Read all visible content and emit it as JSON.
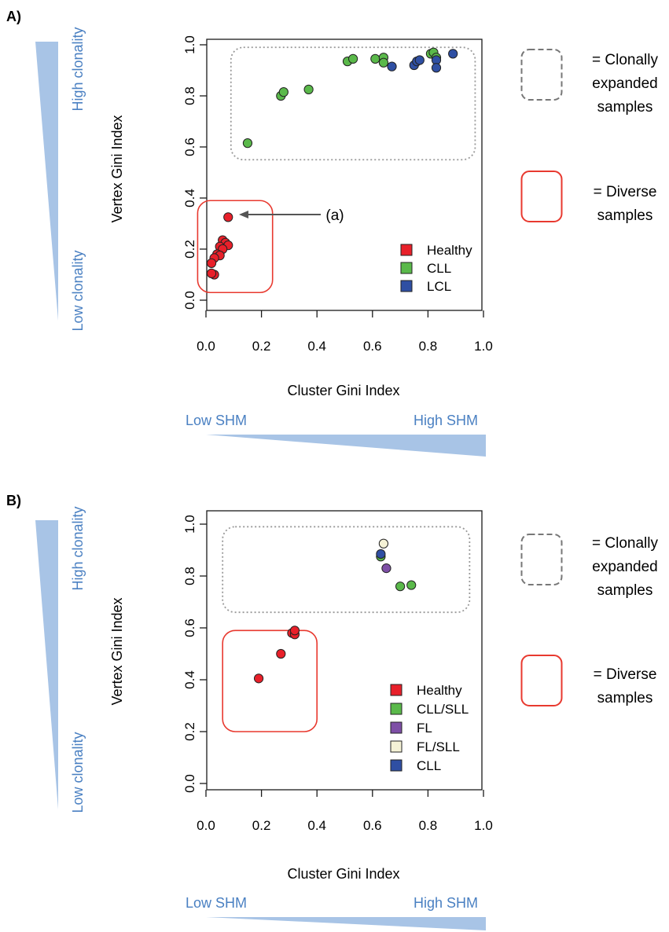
{
  "panels": [
    {
      "label": "A)",
      "left_scale": {
        "top_label": "High clonality",
        "bottom_label": "Low clonality"
      },
      "bottom_scale": {
        "left_label": "Low SHM",
        "right_label": "High SHM"
      },
      "box_legend": {
        "clonal_label_lines": [
          "= Clonally",
          "expanded",
          "samples"
        ],
        "diverse_label_lines": [
          "= Diverse",
          "samples"
        ]
      },
      "annotation": {
        "text": "(a)"
      },
      "chart_data": {
        "type": "scatter",
        "xlabel": "Cluster Gini Index",
        "ylabel": "Vertex Gini Index",
        "xlim": [
          0,
          1
        ],
        "ylim": [
          0,
          1
        ],
        "xticks": [
          "0.0",
          "0.2",
          "0.4",
          "0.6",
          "0.8",
          "1.0"
        ],
        "yticks": [
          "0.0",
          "0.2",
          "0.4",
          "0.6",
          "0.8",
          "1.0"
        ],
        "grid": false,
        "legend_position": "bottom-right",
        "series": [
          {
            "name": "Healthy",
            "color": "#e8202a",
            "x": [
              0.08,
              0.06,
              0.07,
              0.08,
              0.05,
              0.06,
              0.04,
              0.05,
              0.03,
              0.02,
              0.03,
              0.02
            ],
            "y": [
              0.325,
              0.235,
              0.225,
              0.215,
              0.21,
              0.2,
              0.18,
              0.175,
              0.165,
              0.145,
              0.1,
              0.105
            ]
          },
          {
            "name": "CLL",
            "color": "#5ab94a",
            "x": [
              0.15,
              0.27,
              0.28,
              0.37,
              0.51,
              0.53,
              0.61,
              0.64,
              0.64,
              0.81,
              0.82,
              0.83
            ],
            "y": [
              0.615,
              0.8,
              0.815,
              0.825,
              0.935,
              0.945,
              0.945,
              0.95,
              0.93,
              0.965,
              0.97,
              0.95
            ]
          },
          {
            "name": "LCL",
            "color": "#2f4fa3",
            "x": [
              0.67,
              0.75,
              0.76,
              0.77,
              0.83,
              0.83,
              0.89
            ],
            "y": [
              0.915,
              0.92,
              0.935,
              0.94,
              0.94,
              0.91,
              0.965
            ]
          }
        ],
        "regions": [
          {
            "kind": "clonal",
            "x": [
              0.09,
              0.97
            ],
            "y": [
              0.55,
              0.99
            ]
          },
          {
            "kind": "diverse",
            "x": [
              -0.03,
              0.24
            ],
            "y": [
              0.03,
              0.39
            ]
          }
        ]
      }
    },
    {
      "label": "B)",
      "left_scale": {
        "top_label": "High clonality",
        "bottom_label": "Low clonality"
      },
      "bottom_scale": {
        "left_label": "Low SHM",
        "right_label": "High SHM"
      },
      "box_legend": {
        "clonal_label_lines": [
          "= Clonally",
          "expanded",
          "samples"
        ],
        "diverse_label_lines": [
          "= Diverse",
          "samples"
        ]
      },
      "chart_data": {
        "type": "scatter",
        "xlabel": "Cluster Gini Index",
        "ylabel": "Vertex Gini Index",
        "xlim": [
          0,
          1
        ],
        "ylim": [
          0,
          1
        ],
        "xticks": [
          "0.0",
          "0.2",
          "0.4",
          "0.6",
          "0.8",
          "1.0"
        ],
        "yticks": [
          "0.0",
          "0.2",
          "0.4",
          "0.6",
          "0.8",
          "1.0"
        ],
        "grid": false,
        "legend_position": "bottom-right",
        "series": [
          {
            "name": "Healthy",
            "color": "#e8202a",
            "x": [
              0.19,
              0.27,
              0.31,
              0.32,
              0.32
            ],
            "y": [
              0.405,
              0.5,
              0.58,
              0.575,
              0.59
            ]
          },
          {
            "name": "CLL/SLL",
            "color": "#5ab94a",
            "x": [
              0.63,
              0.7,
              0.74
            ],
            "y": [
              0.875,
              0.76,
              0.765
            ]
          },
          {
            "name": "FL",
            "color": "#7e4fa6",
            "x": [
              0.65
            ],
            "y": [
              0.83
            ]
          },
          {
            "name": "FL/SLL",
            "color": "#f5f2d6",
            "x": [
              0.64
            ],
            "y": [
              0.925
            ]
          },
          {
            "name": "CLL",
            "color": "#2f4fa3",
            "x": [
              0.63
            ],
            "y": [
              0.885
            ]
          }
        ],
        "regions": [
          {
            "kind": "clonal",
            "x": [
              0.06,
              0.95
            ],
            "y": [
              0.66,
              0.99
            ]
          },
          {
            "kind": "diverse",
            "x": [
              0.06,
              0.4
            ],
            "y": [
              0.2,
              0.59
            ]
          }
        ]
      }
    }
  ],
  "colors": {
    "scale_blue": "#a8c4e6",
    "scale_text": "#4a80c2",
    "clonal_box": "#999999",
    "diverse_box": "#e8392f",
    "axis": "#1a1a1a"
  }
}
